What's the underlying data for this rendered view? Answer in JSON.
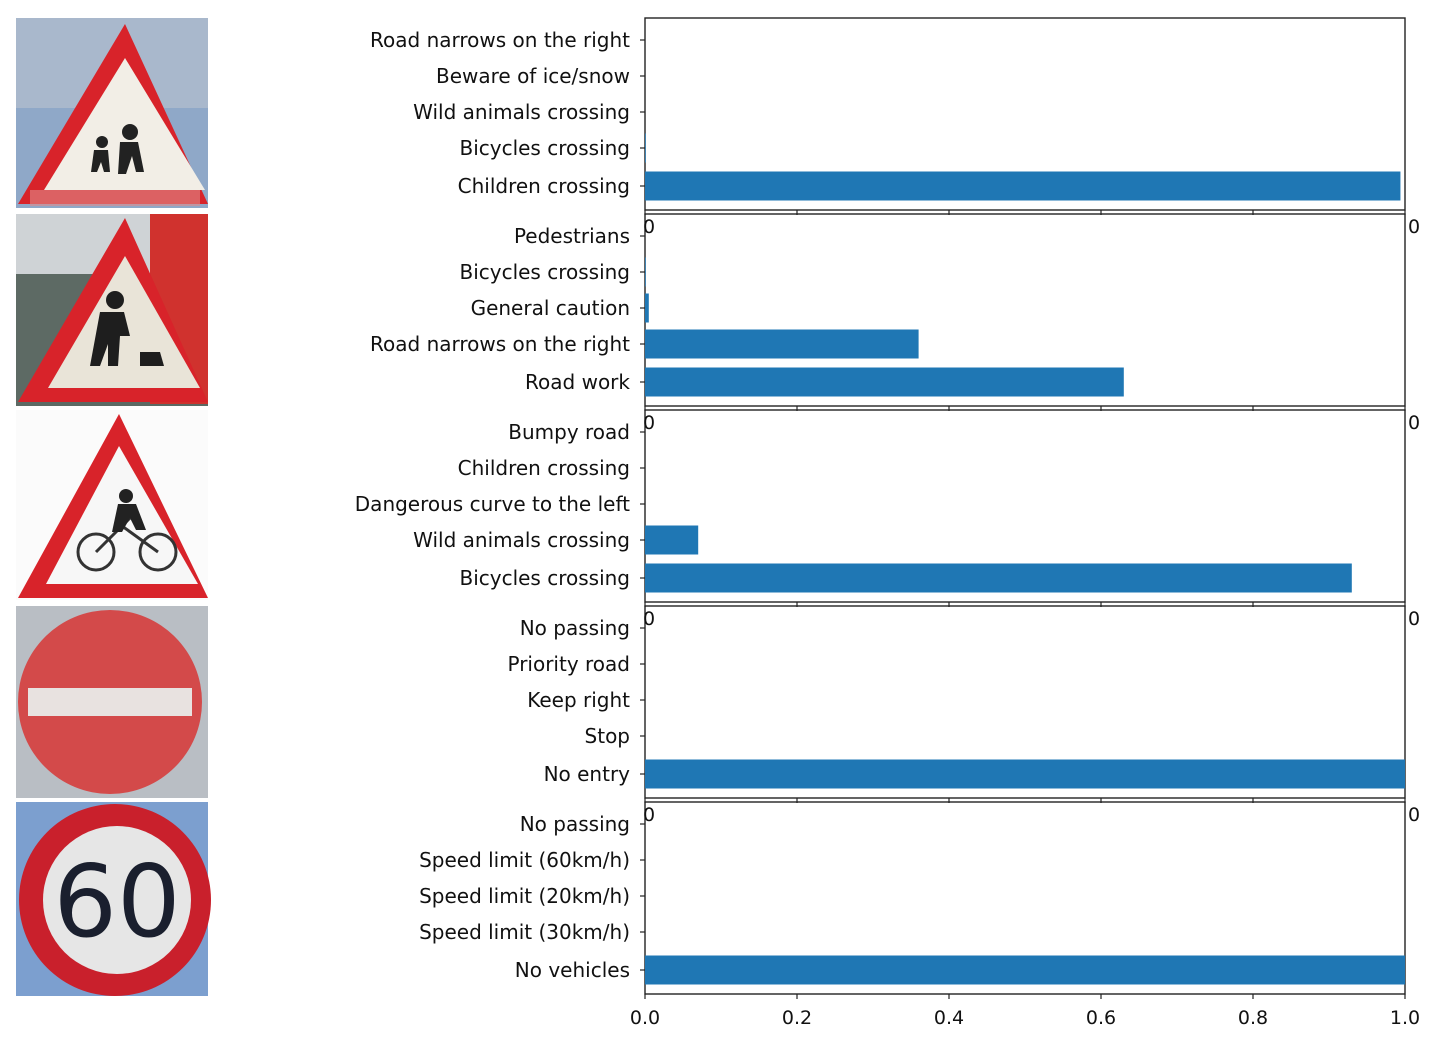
{
  "chart_data": [
    {
      "type": "bar",
      "orientation": "horizontal",
      "image_icon": "children-crossing-sign",
      "categories": [
        "Road narrows on the right",
        "Beware of ice/snow",
        "Wild animals crossing",
        "Bicycles crossing",
        "Children crossing"
      ],
      "values": [
        0.0,
        0.0,
        0.0,
        0.001,
        0.994
      ],
      "xlim": [
        0,
        1
      ],
      "xticks_shown": false
    },
    {
      "type": "bar",
      "orientation": "horizontal",
      "image_icon": "road-work-sign",
      "categories": [
        "Pedestrians",
        "Bicycles crossing",
        "General caution",
        "Road narrows on the right",
        "Road work"
      ],
      "values": [
        0.0,
        0.001,
        0.005,
        0.36,
        0.63
      ],
      "xlim": [
        0,
        1
      ],
      "xticks_shown": false
    },
    {
      "type": "bar",
      "orientation": "horizontal",
      "image_icon": "bicycles-crossing-sign",
      "categories": [
        "Bumpy road",
        "Children crossing",
        "Dangerous curve to the left",
        "Wild animals crossing",
        "Bicycles crossing"
      ],
      "values": [
        0.0,
        0.0,
        0.0,
        0.07,
        0.93
      ],
      "xlim": [
        0,
        1
      ],
      "xticks_shown": false
    },
    {
      "type": "bar",
      "orientation": "horizontal",
      "image_icon": "no-entry-sign",
      "categories": [
        "No passing",
        "Priority road",
        "Keep right",
        "Stop",
        "No entry"
      ],
      "values": [
        0.0,
        0.0,
        0.0,
        0.0,
        1.0
      ],
      "xlim": [
        0,
        1
      ],
      "xticks_shown": false
    },
    {
      "type": "bar",
      "orientation": "horizontal",
      "image_icon": "speed-limit-60-sign",
      "categories": [
        "No passing",
        "Speed limit (60km/h)",
        "Speed limit (20km/h)",
        "Speed limit (30km/h)",
        "No vehicles"
      ],
      "values": [
        0.0,
        0.0,
        0.0,
        0.0,
        1.0
      ],
      "xlim": [
        0,
        1
      ],
      "xticks": [
        "0.0",
        "0.2",
        "0.4",
        "0.6",
        "0.8",
        "1.0"
      ],
      "xticks_shown": true
    }
  ],
  "overlap_ticks": {
    "left": "0",
    "right": "0"
  },
  "sign_images": {
    "sign_60_text": "60"
  },
  "colors": {
    "bar": "#1f77b4",
    "sign_red": "#d8232a",
    "sign_white": "#f2f2f2",
    "sky_blue": "#7c9fcf",
    "snow_gray": "#bfc5cc"
  }
}
